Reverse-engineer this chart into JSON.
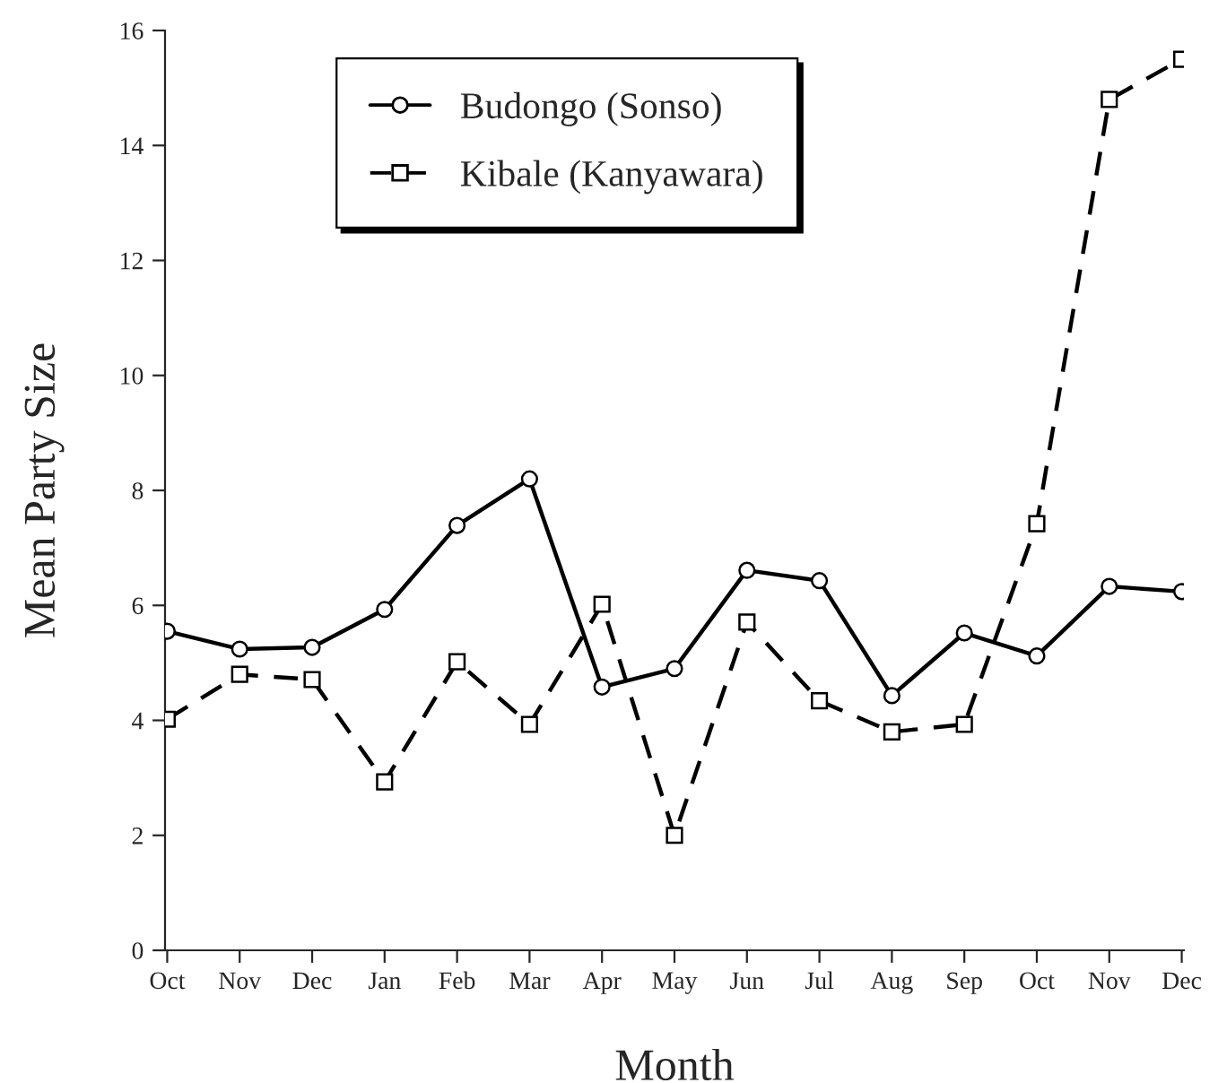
{
  "chart_data": {
    "type": "line",
    "xlabel": "Month",
    "ylabel": "Mean Party Size",
    "categories": [
      "Oct",
      "Nov",
      "Dec",
      "Jan",
      "Feb",
      "Mar",
      "Apr",
      "May",
      "Jun",
      "Jul",
      "Aug",
      "Sep",
      "Oct",
      "Nov",
      "Dec"
    ],
    "series": [
      {
        "name": "Budongo (Sonso)",
        "color": "#000000",
        "marker": "circle",
        "line_style": "solid",
        "values": [
          5.55,
          5.24,
          5.27,
          5.93,
          7.39,
          8.2,
          4.58,
          4.9,
          6.61,
          6.43,
          4.43,
          5.52,
          5.12,
          6.33,
          6.24
        ]
      },
      {
        "name": "Kibale (Kanyawara)",
        "color": "#000000",
        "marker": "square",
        "line_style": "dashed",
        "values": [
          4.02,
          4.8,
          4.71,
          2.93,
          5.02,
          3.93,
          6.02,
          2.0,
          5.71,
          4.34,
          3.8,
          3.93,
          7.42,
          14.8,
          15.5
        ]
      }
    ],
    "ylim": [
      0,
      16
    ],
    "yticks": [
      0,
      2,
      4,
      6,
      8,
      10,
      12,
      14,
      16
    ],
    "grid": false,
    "legend": "top left"
  }
}
